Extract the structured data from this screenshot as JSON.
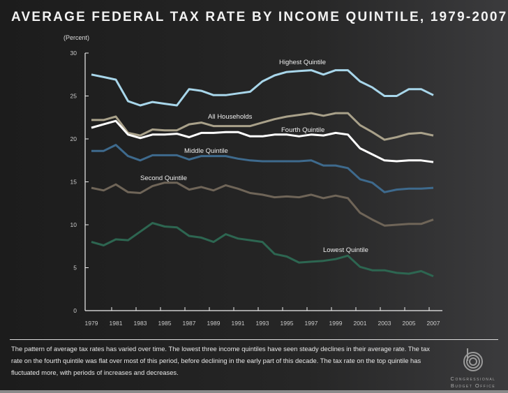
{
  "chart_data": {
    "type": "line",
    "title": "AVERAGE FEDERAL TAX RATE BY INCOME QUINTILE, 1979-2007",
    "ylabel": "(Percent)",
    "xlabel": "",
    "ylim": [
      0,
      30
    ],
    "yticks": [
      0,
      5,
      10,
      15,
      20,
      25,
      30
    ],
    "xticks": [
      "1979",
      "1981",
      "1983",
      "1985",
      "1987",
      "1989",
      "1991",
      "1993",
      "1995",
      "1997",
      "1999",
      "2001",
      "2003",
      "2005",
      "2007"
    ],
    "grid": false,
    "legend": "inline labels",
    "x": [
      1979,
      1980,
      1981,
      1982,
      1983,
      1984,
      1985,
      1986,
      1987,
      1988,
      1989,
      1990,
      1991,
      1992,
      1993,
      1994,
      1995,
      1996,
      1997,
      1998,
      1999,
      2000,
      2001,
      2002,
      2003,
      2004,
      2005,
      2006,
      2007
    ],
    "series": [
      {
        "name": "Highest Quintile",
        "color": "#a8d6ea",
        "values": [
          27.5,
          27.2,
          26.9,
          24.4,
          23.9,
          24.3,
          24.1,
          23.9,
          25.8,
          25.6,
          25.1,
          25.1,
          25.3,
          25.5,
          26.7,
          27.4,
          27.8,
          27.9,
          28.0,
          27.5,
          28.0,
          28.0,
          26.7,
          26.0,
          25.0,
          25.0,
          25.8,
          25.8,
          25.1
        ]
      },
      {
        "name": "All Households",
        "color": "#a9a18a",
        "values": [
          22.2,
          22.2,
          22.6,
          20.7,
          20.4,
          21.1,
          21.0,
          21.0,
          21.7,
          21.9,
          21.5,
          21.5,
          21.5,
          21.5,
          21.9,
          22.3,
          22.6,
          22.8,
          23.0,
          22.7,
          23.0,
          23.0,
          21.6,
          20.8,
          19.9,
          20.2,
          20.6,
          20.7,
          20.4
        ]
      },
      {
        "name": "Fourth Quintile",
        "color": "#ffffff",
        "values": [
          21.3,
          21.7,
          22.1,
          20.5,
          20.1,
          20.5,
          20.5,
          20.6,
          20.2,
          20.7,
          20.7,
          20.8,
          20.8,
          20.3,
          20.3,
          20.5,
          20.5,
          20.3,
          20.5,
          20.4,
          20.7,
          20.5,
          18.9,
          18.2,
          17.5,
          17.4,
          17.5,
          17.5,
          17.3
        ]
      },
      {
        "name": "Middle Quintile",
        "color": "#3e6a8d",
        "values": [
          18.6,
          18.6,
          19.3,
          18.0,
          17.5,
          18.1,
          18.1,
          18.1,
          17.6,
          18.0,
          18.0,
          18.0,
          17.7,
          17.5,
          17.4,
          17.4,
          17.4,
          17.4,
          17.5,
          16.9,
          16.9,
          16.6,
          15.3,
          14.9,
          13.8,
          14.1,
          14.2,
          14.2,
          14.3
        ]
      },
      {
        "name": "Second Quintile",
        "color": "#6f6558",
        "values": [
          14.3,
          14.0,
          14.7,
          13.8,
          13.7,
          14.5,
          14.9,
          14.9,
          14.1,
          14.4,
          14.0,
          14.6,
          14.2,
          13.7,
          13.5,
          13.2,
          13.3,
          13.2,
          13.5,
          13.1,
          13.4,
          13.1,
          11.4,
          10.6,
          9.9,
          10.0,
          10.1,
          10.1,
          10.6
        ]
      },
      {
        "name": "Lowest Quintile",
        "color": "#2d6651",
        "values": [
          8.0,
          7.6,
          8.3,
          8.2,
          9.2,
          10.2,
          9.8,
          9.7,
          8.7,
          8.5,
          8.0,
          8.9,
          8.4,
          8.2,
          8.0,
          6.6,
          6.3,
          5.6,
          5.7,
          5.8,
          6.0,
          6.4,
          5.1,
          4.7,
          4.7,
          4.4,
          4.3,
          4.6,
          4.0
        ]
      }
    ]
  },
  "caption": "The pattern of average tax rates has varied over time. The lowest three income quintiles have seen steady declines in their average rate. The tax rate on the fourth quintile was flat over most of this period, before declining in the early part of this decade. The tax rate on the top quintile has fluctuated more, with periods of increases and decreases.",
  "logo": {
    "line1": "Congressional",
    "line2": "Budget Office",
    "icon": "cbo-logo-icon"
  }
}
